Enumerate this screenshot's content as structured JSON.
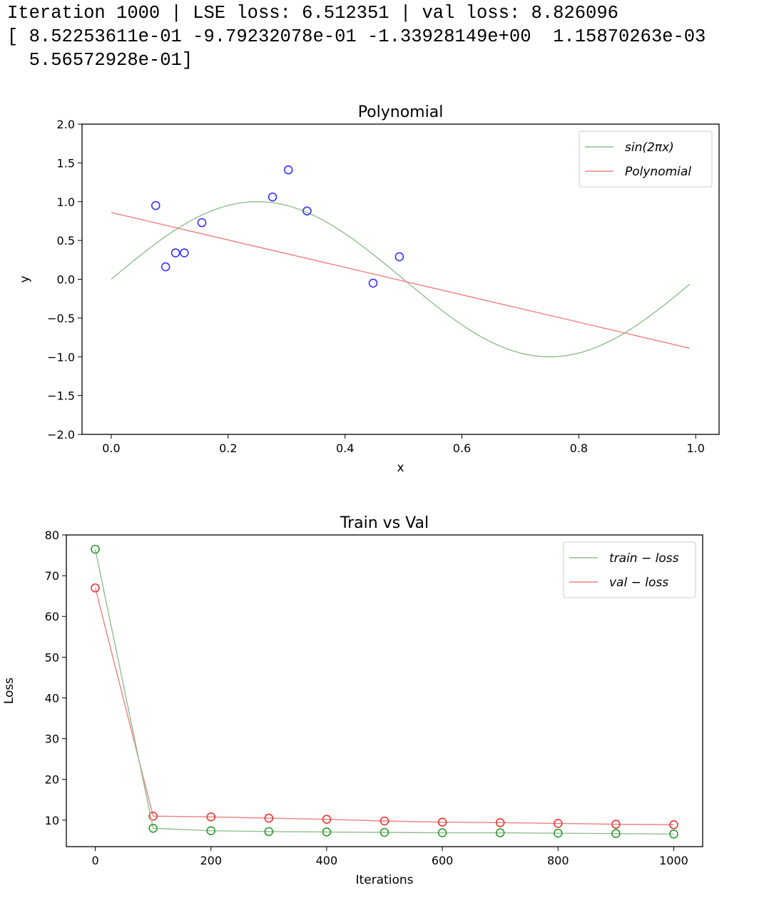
{
  "console": {
    "lines": [
      "Iteration 1000 | LSE loss: 6.512351 | val loss: 8.826096",
      "[ 8.52253611e-01 -9.79232078e-01 -1.33928149e+00  1.15870263e-03",
      "  5.56572928e-01]"
    ]
  },
  "chart_data": [
    {
      "type": "line",
      "title": "Polynomial",
      "xlabel": "x",
      "ylabel": "y",
      "xlim": [
        -0.05,
        1.04
      ],
      "ylim": [
        -2.0,
        2.0
      ],
      "xticks": [
        0.0,
        0.2,
        0.4,
        0.6,
        0.8,
        1.0
      ],
      "xtick_labels": [
        "0.0",
        "0.2",
        "0.4",
        "0.6",
        "0.8",
        "1.0"
      ],
      "yticks": [
        2.0,
        1.5,
        1.0,
        0.5,
        0.0,
        -0.5,
        -1.0,
        -1.5,
        -2.0
      ],
      "ytick_labels": [
        "2.0",
        "1.5",
        "1.0",
        "0.5",
        "0.0",
        "−0.5",
        "−1.0",
        "−1.5",
        "−2.0"
      ],
      "grid": false,
      "legend_position": "top-right",
      "series": [
        {
          "name": "sin(2πx)",
          "kind": "function-sin2pix",
          "x_range": [
            0.0,
            0.99
          ],
          "color": "#8fbf8f"
        },
        {
          "name": "Polynomial",
          "kind": "line",
          "x": [
            0.0,
            0.99
          ],
          "y": [
            0.86,
            -0.89
          ],
          "color": "#f08080"
        }
      ],
      "points": {
        "color": "#3333ff",
        "x": [
          0.076,
          0.093,
          0.11,
          0.125,
          0.155,
          0.276,
          0.303,
          0.335,
          0.448,
          0.493
        ],
        "y": [
          0.95,
          0.16,
          0.34,
          0.34,
          0.73,
          1.06,
          1.41,
          0.88,
          -0.05,
          0.29
        ]
      }
    },
    {
      "type": "line",
      "title": "Train vs Val",
      "xlabel": "Iterations",
      "ylabel": "Loss",
      "xlim": [
        -50,
        1050
      ],
      "ylim": [
        3.5,
        80
      ],
      "xticks": [
        0,
        200,
        400,
        600,
        800,
        1000
      ],
      "xtick_labels": [
        "0",
        "200",
        "400",
        "600",
        "800",
        "1000"
      ],
      "yticks": [
        10,
        20,
        30,
        40,
        50,
        60,
        70,
        80
      ],
      "ytick_labels": [
        "10",
        "20",
        "30",
        "40",
        "50",
        "60",
        "70",
        "80"
      ],
      "grid": false,
      "legend_position": "top-right",
      "x": [
        0,
        100,
        200,
        300,
        400,
        500,
        600,
        700,
        800,
        900,
        1000
      ],
      "series": [
        {
          "name": "train − loss",
          "color": "#2e9a2e",
          "line_color": "#8fbf8f",
          "values": [
            76.5,
            8.0,
            7.4,
            7.2,
            7.1,
            7.0,
            6.9,
            6.9,
            6.8,
            6.7,
            6.6
          ]
        },
        {
          "name": "val − loss",
          "color": "#ee3333",
          "line_color": "#f08080",
          "values": [
            67.0,
            11.0,
            10.8,
            10.5,
            10.2,
            9.8,
            9.5,
            9.4,
            9.2,
            9.0,
            8.9
          ]
        }
      ]
    }
  ]
}
